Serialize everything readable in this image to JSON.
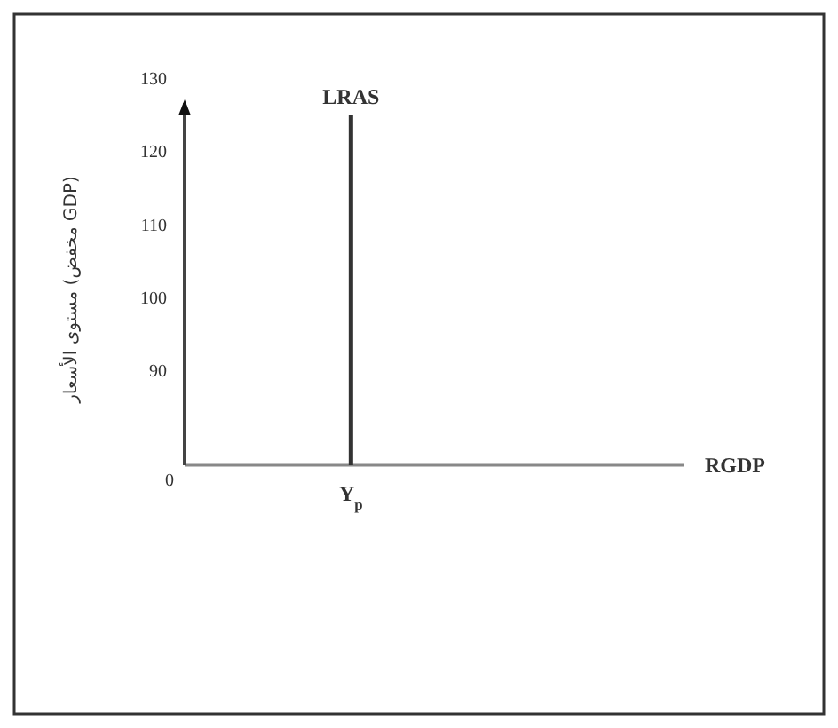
{
  "chart_data": {
    "type": "line",
    "categories": [
      null,
      null,
      null,
      "Y$_{p}$",
      null,
      null,
      null,
      null,
      null,
      null
    ],
    "series": [
      {
        "name": "LRAS",
        "type": "line",
        "x": [
          "Y$_{p}$",
          "Y$_{p}$"
        ],
        "values": [
          77,
          125
        ],
        "color": "#333333"
      }
    ],
    "xlabel": "RGDP",
    "ylabel": "مستوى الأسعار (مخفض GDP)",
    "ylim": [
      77,
      130
    ],
    "yticks": [
      90,
      100,
      110,
      120,
      130
    ],
    "annotations": [
      "0"
    ],
    "grid": false,
    "marker": "none",
    "line_style": "solid"
  }
}
